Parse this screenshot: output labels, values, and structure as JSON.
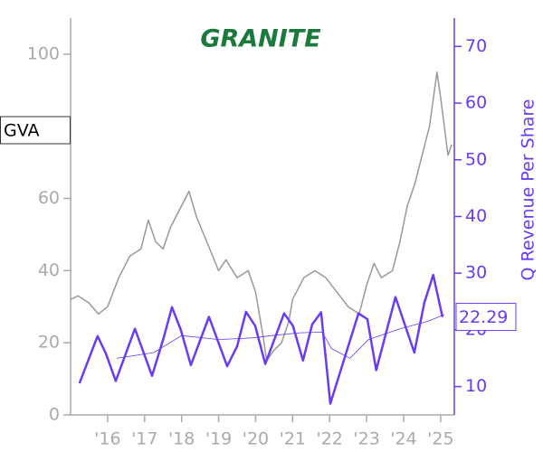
{
  "chart_data": {
    "type": "line",
    "logo": "GRANITE",
    "ticker": "GVA",
    "y2_label": "Q Revenue Per Share",
    "xlim": [
      2015,
      2025.37
    ],
    "xticks": [
      {
        "value": 2016,
        "label": "'16"
      },
      {
        "value": 2017,
        "label": "'17"
      },
      {
        "value": 2018,
        "label": "'18"
      },
      {
        "value": 2019,
        "label": "'19"
      },
      {
        "value": 2020,
        "label": "'20"
      },
      {
        "value": 2021,
        "label": "'21"
      },
      {
        "value": 2022,
        "label": "'22"
      },
      {
        "value": 2023,
        "label": "'23"
      },
      {
        "value": 2024,
        "label": "'24"
      },
      {
        "value": 2025,
        "label": "'25"
      }
    ],
    "ylim": [
      0,
      110
    ],
    "yticks": [
      0,
      20,
      40,
      60,
      100
    ],
    "y2lim": [
      5,
      75
    ],
    "y2ticks": [
      10,
      20,
      30,
      40,
      50,
      60,
      70
    ],
    "series": [
      {
        "color": "#999999",
        "axis": "y",
        "width": 1.5,
        "x": [
          2015.0,
          2015.2,
          2015.5,
          2015.75,
          2016.0,
          2016.3,
          2016.6,
          2016.9,
          2017.1,
          2017.3,
          2017.5,
          2017.7,
          2017.9,
          2018.1,
          2018.2,
          2018.4,
          2018.6,
          2018.8,
          2019.0,
          2019.2,
          2019.5,
          2019.8,
          2020.0,
          2020.2,
          2020.3,
          2020.5,
          2020.7,
          2020.9,
          2021.0,
          2021.3,
          2021.6,
          2021.9,
          2022.2,
          2022.5,
          2022.8,
          2023.0,
          2023.2,
          2023.4,
          2023.7,
          2023.9,
          2024.1,
          2024.3,
          2024.5,
          2024.7,
          2024.9,
          2025.0,
          2025.2,
          2025.3
        ],
        "values": [
          32,
          33,
          31,
          28,
          30,
          38,
          44,
          46,
          54,
          48,
          46,
          52,
          56,
          60,
          62,
          55,
          50,
          45,
          40,
          43,
          38,
          40,
          34,
          22,
          15,
          18,
          20,
          26,
          32,
          38,
          40,
          38,
          34,
          30,
          28,
          36,
          42,
          38,
          40,
          48,
          58,
          64,
          72,
          80,
          95,
          88,
          72,
          75
        ]
      },
      {
        "color": "#6a3cf0",
        "axis": "y2",
        "width": 2.5,
        "x": [
          2015.24,
          2015.73,
          2015.95,
          2016.22,
          2016.74,
          2017.2,
          2017.52,
          2017.74,
          2017.98,
          2018.25,
          2018.74,
          2019.23,
          2019.5,
          2019.74,
          2019.99,
          2020.26,
          2020.77,
          2021.01,
          2021.28,
          2021.53,
          2021.77,
          2022.02,
          2022.78,
          2023.02,
          2023.26,
          2023.78,
          2024.29,
          2024.56,
          2024.8,
          2025.05
        ],
        "values": [
          10.6,
          18.9,
          15.9,
          11.0,
          20.2,
          11.9,
          18.7,
          24.0,
          20.0,
          13.8,
          22.3,
          13.6,
          17.1,
          23.2,
          20.7,
          14.0,
          22.9,
          20.7,
          14.6,
          21.0,
          23.1,
          7.0,
          22.9,
          21.9,
          12.9,
          25.8,
          16.0,
          24.8,
          29.7,
          22.29
        ]
      },
      {
        "color": "#6a3cf0",
        "axis": "y2",
        "width": 0.8,
        "x": [
          2016.25,
          2017.25,
          2018.0,
          2019.0,
          2019.95,
          2020.45,
          2021.2,
          2021.8,
          2022.05,
          2022.55,
          2023.05,
          2023.9,
          2024.65,
          2025.1
        ],
        "values": [
          15.0,
          16.0,
          19.0,
          18.3,
          18.6,
          19.0,
          19.5,
          19.6,
          16.7,
          15.0,
          18.3,
          20.2,
          21.5,
          22.7
        ]
      }
    ]
  }
}
